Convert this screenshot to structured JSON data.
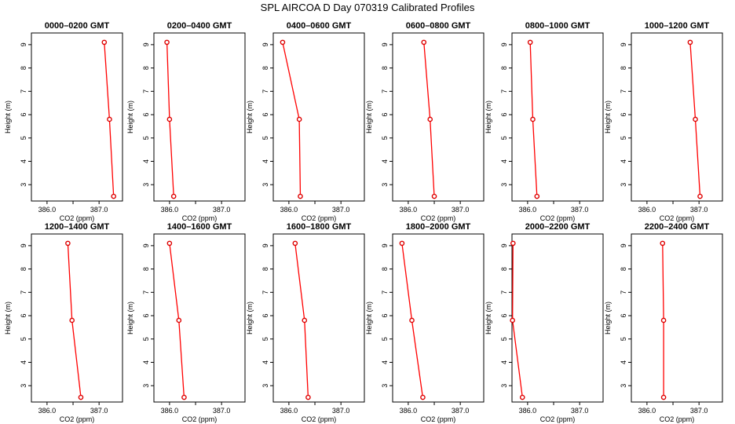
{
  "title": "SPL AIRCOA D  Day 070319  Calibrated Profiles",
  "chart_data": {
    "type": "line",
    "xlabel": "CO2 (ppm)",
    "ylabel": "Height (m)",
    "xlim": [
      385.7,
      387.45
    ],
    "ylim": [
      2.3,
      9.5
    ],
    "x_ticks": [
      386.0,
      386.5,
      387.0
    ],
    "x_tick_labels": [
      "386.0",
      "",
      "387.0"
    ],
    "y_ticks": [
      3,
      4,
      5,
      6,
      7,
      8,
      9
    ],
    "y_tick_labels": [
      "3",
      "4",
      "5",
      "6",
      "7",
      "8",
      "9"
    ],
    "panels": [
      {
        "title": "0000–0200 GMT",
        "heights": [
          9.1,
          5.8,
          2.5
        ],
        "co2": [
          387.1,
          387.2,
          387.28
        ]
      },
      {
        "title": "0200–0400 GMT",
        "heights": [
          9.1,
          5.8,
          2.5
        ],
        "co2": [
          385.95,
          386.0,
          386.08
        ]
      },
      {
        "title": "0400–0600 GMT",
        "heights": [
          9.1,
          5.8,
          2.5
        ],
        "co2": [
          385.88,
          386.2,
          386.22
        ]
      },
      {
        "title": "0600–0800 GMT",
        "heights": [
          9.1,
          5.8,
          2.5
        ],
        "co2": [
          386.3,
          386.42,
          386.5
        ]
      },
      {
        "title": "0800–1000 GMT",
        "heights": [
          9.1,
          5.8,
          2.5
        ],
        "co2": [
          386.05,
          386.1,
          386.18
        ]
      },
      {
        "title": "1000–1200 GMT",
        "heights": [
          9.1,
          5.8,
          2.5
        ],
        "co2": [
          386.83,
          386.93,
          387.02
        ]
      },
      {
        "title": "1200–1400 GMT",
        "heights": [
          9.1,
          5.8,
          2.5
        ],
        "co2": [
          386.4,
          386.48,
          386.65
        ]
      },
      {
        "title": "1400–1600 GMT",
        "heights": [
          9.1,
          5.8,
          2.5
        ],
        "co2": [
          386.0,
          386.18,
          386.28
        ]
      },
      {
        "title": "1600–1800 GMT",
        "heights": [
          9.1,
          5.8,
          2.5
        ],
        "co2": [
          386.12,
          386.3,
          386.37
        ]
      },
      {
        "title": "1800–2000 GMT",
        "heights": [
          9.1,
          5.8,
          2.5
        ],
        "co2": [
          385.88,
          386.07,
          386.28
        ]
      },
      {
        "title": "2000–2200 GMT",
        "heights": [
          9.1,
          5.8,
          2.5
        ],
        "co2": [
          385.72,
          385.71,
          385.9
        ]
      },
      {
        "title": "2200–2400 GMT",
        "heights": [
          9.1,
          5.8,
          2.5
        ],
        "co2": [
          386.3,
          386.32,
          386.32
        ]
      }
    ]
  }
}
